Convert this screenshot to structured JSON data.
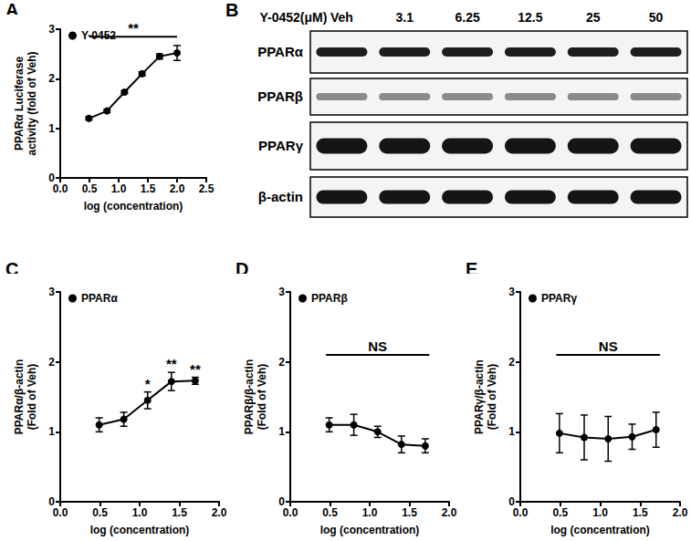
{
  "chart_data": [
    {
      "panel": "A",
      "type": "line",
      "x": [
        0.49,
        0.8,
        1.1,
        1.4,
        1.7,
        2.0
      ],
      "series": [
        {
          "name": "Y-0452",
          "color": "#000000",
          "marker": "circle",
          "values": [
            1.2,
            1.35,
            1.73,
            2.1,
            2.45,
            2.52
          ],
          "errors": [
            0.03,
            0.03,
            0.03,
            0.04,
            0.05,
            0.15
          ]
        }
      ],
      "xlabel": "log (concentration)",
      "ylabel": "PPARα Luciferase\nactivity (fold of Veh)",
      "xlim": [
        0,
        2.5
      ],
      "xticks": [
        {
          "value": 0,
          "label": "0.0"
        },
        0.5,
        {
          "value": 1,
          "label": "1.0"
        },
        1.5,
        {
          "value": 2,
          "label": "2.0"
        },
        2.5
      ],
      "ylim": [
        0,
        3
      ],
      "yticks": [
        0,
        1,
        2,
        3
      ],
      "grid": false,
      "legend": "upper left",
      "annotations": [
        {
          "text": "**",
          "x": [
            0.5,
            2.0
          ],
          "y": 2.85
        }
      ]
    },
    {
      "panel": "C",
      "type": "line",
      "x": [
        0.49,
        0.8,
        1.1,
        1.4,
        1.7
      ],
      "series": [
        {
          "name": "PPARα",
          "color": "#000000",
          "marker": "circle",
          "values": [
            1.1,
            1.18,
            1.45,
            1.72,
            1.73
          ],
          "errors": [
            0.1,
            0.1,
            0.12,
            0.13,
            0.05
          ],
          "significance": [
            null,
            null,
            "*",
            "**",
            "**"
          ]
        }
      ],
      "xlabel": "log (concentration)",
      "ylabel": "PPARα/β-actin\n(Fold of Veh)",
      "xlim": [
        0,
        2
      ],
      "xticks": [
        {
          "value": 0,
          "label": "0.0"
        },
        0.5,
        {
          "value": 1,
          "label": "1.0"
        },
        1.5,
        {
          "value": 2,
          "label": "2.0"
        }
      ],
      "ylim": [
        0,
        3
      ],
      "yticks": [
        0,
        1,
        2,
        3
      ],
      "grid": false,
      "legend": "upper left"
    },
    {
      "panel": "D",
      "type": "line",
      "x": [
        0.49,
        0.8,
        1.1,
        1.4,
        1.7
      ],
      "series": [
        {
          "name": "PPARβ",
          "color": "#000000",
          "marker": "circle",
          "values": [
            1.1,
            1.1,
            1.0,
            0.82,
            0.8
          ],
          "errors": [
            0.1,
            0.15,
            0.08,
            0.12,
            0.1
          ]
        }
      ],
      "xlabel": "log (concentration)",
      "ylabel": "PPARβ/β-actin\n(Fold of Veh)",
      "xlim": [
        0,
        2
      ],
      "xticks": [
        {
          "value": 0,
          "label": "0.0"
        },
        0.5,
        {
          "value": 1,
          "label": "1.0"
        },
        1.5,
        {
          "value": 2,
          "label": "2.0"
        }
      ],
      "ylim": [
        0,
        3
      ],
      "yticks": [
        0,
        1,
        2,
        3
      ],
      "grid": false,
      "legend": "upper left",
      "annotations": [
        {
          "text": "NS",
          "x": [
            0.45,
            1.75
          ],
          "y": 2.1
        }
      ]
    },
    {
      "panel": "E",
      "type": "line",
      "x": [
        0.49,
        0.8,
        1.1,
        1.4,
        1.7
      ],
      "series": [
        {
          "name": "PPARγ",
          "color": "#000000",
          "marker": "circle",
          "values": [
            0.98,
            0.92,
            0.9,
            0.93,
            1.03
          ],
          "errors": [
            0.28,
            0.32,
            0.32,
            0.18,
            0.25
          ]
        }
      ],
      "xlabel": "log (concentration)",
      "ylabel": "PPARγ/β-actin\n(Fold of Veh)",
      "xlim": [
        0,
        2
      ],
      "xticks": [
        {
          "value": 0,
          "label": "0.0"
        },
        0.5,
        {
          "value": 1,
          "label": "1.0"
        },
        1.5,
        {
          "value": 2,
          "label": "2.0"
        }
      ],
      "ylim": [
        0,
        3
      ],
      "yticks": [
        0,
        1,
        2,
        3
      ],
      "grid": false,
      "legend": "upper left",
      "annotations": [
        {
          "text": "NS",
          "x": [
            0.45,
            1.75
          ],
          "y": 2.1
        }
      ]
    }
  ],
  "western_blot": {
    "panel": "B",
    "header": "Y-0452(μM)",
    "lanes": [
      "Veh",
      "3.1",
      "6.25",
      "12.5",
      "25",
      "50"
    ],
    "rows": [
      "PPARα",
      "PPARβ",
      "PPARγ",
      "β-actin"
    ]
  }
}
